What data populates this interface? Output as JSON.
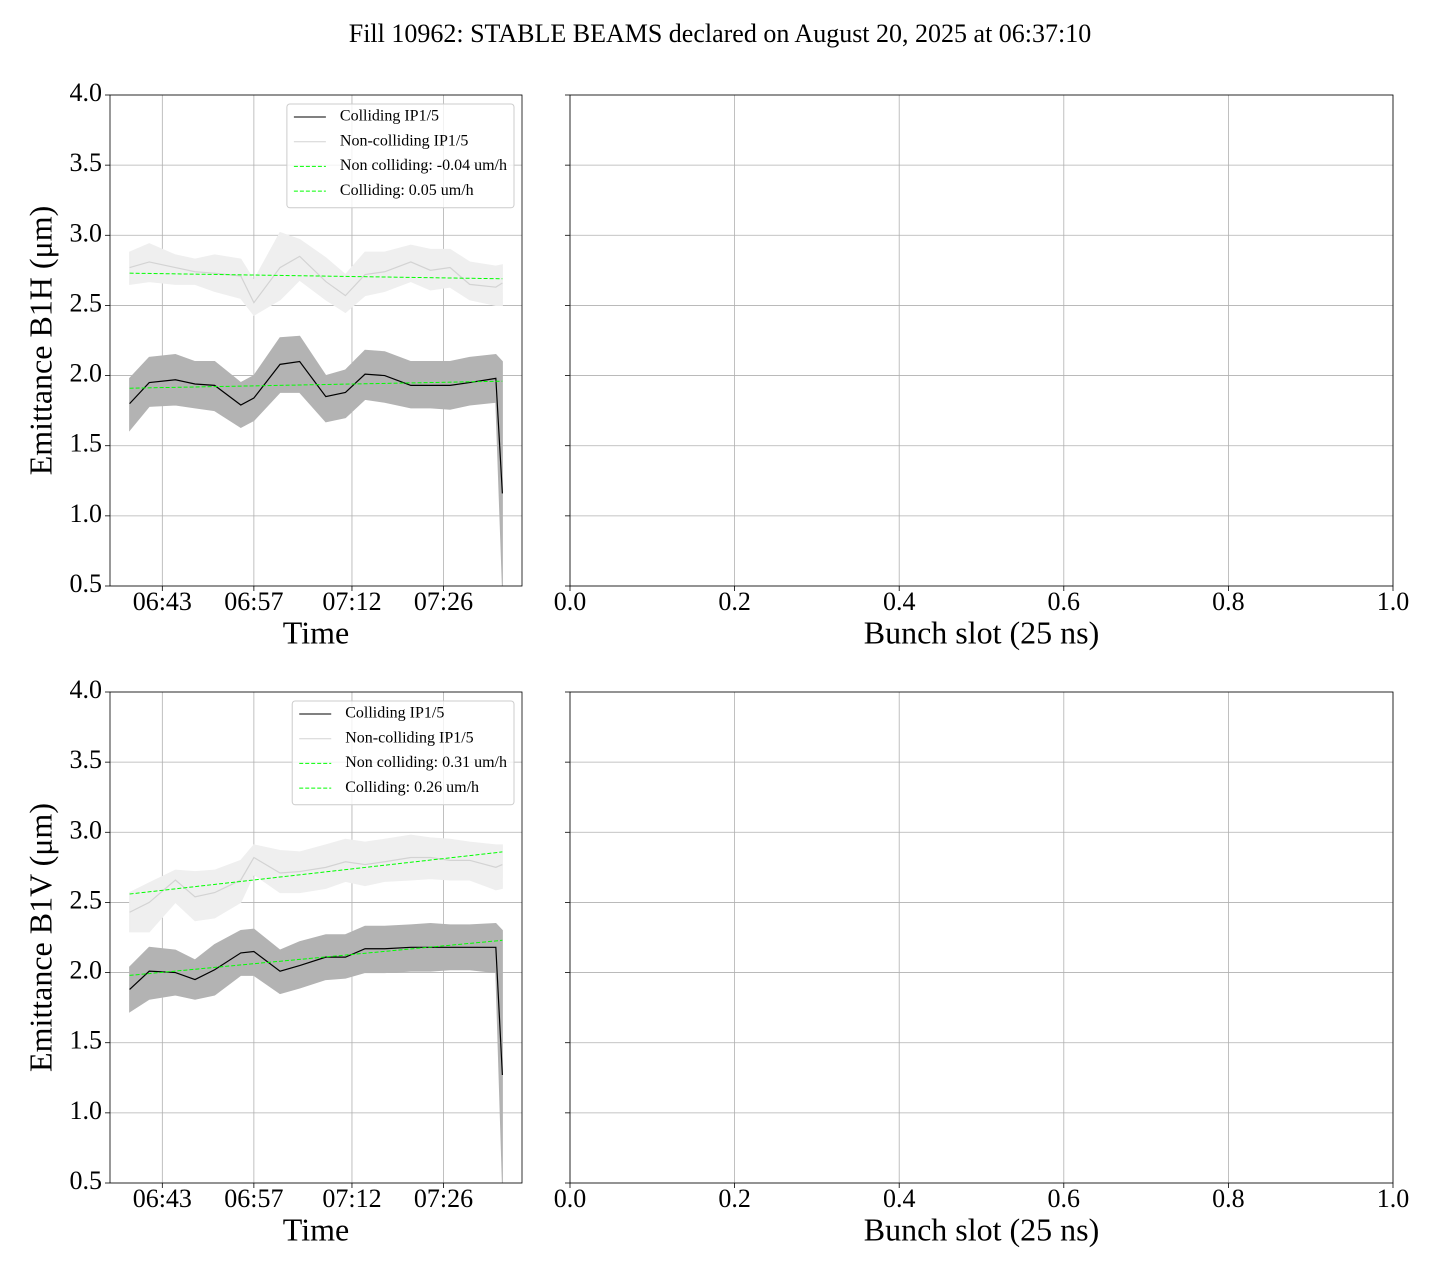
{
  "title": "Fill 10962: STABLE BEAMS declared on August 20, 2025 at 06:37:10",
  "chart_data": [
    {
      "type": "line",
      "xlabel": "Time",
      "ylabel": "Emittance B1H (μm)",
      "grid": true,
      "legend": "upper right",
      "show_ytick_labels": true,
      "x": [
        "06:38",
        "06:41",
        "06:45",
        "06:48",
        "06:51",
        "06:55",
        "06:57",
        "07:01",
        "07:04",
        "07:08",
        "07:11",
        "07:14",
        "07:17",
        "07:21",
        "07:24",
        "07:27",
        "07:30",
        "07:34",
        "07:35"
      ],
      "xlim": [
        "06:35",
        "07:38"
      ],
      "xticks": [
        "06:43",
        "06:57",
        "07:12",
        "07:26"
      ],
      "ylim": [
        0.5,
        4
      ],
      "yticks": [
        0.5,
        {
          "value": 1,
          "label": "1.0"
        },
        1.5,
        {
          "value": 2,
          "label": "2.0"
        },
        2.5,
        {
          "value": 3,
          "label": "3.0"
        },
        3.5,
        {
          "value": 4,
          "label": "4.0"
        }
      ],
      "series": [
        {
          "name": "Colliding IP1/5",
          "color": "#000000",
          "band_color": "#b3b3b3",
          "values": [
            1.8,
            1.95,
            1.97,
            1.94,
            1.93,
            1.79,
            1.84,
            2.08,
            2.1,
            1.85,
            1.88,
            2.01,
            2.0,
            1.93,
            1.93,
            1.93,
            1.95,
            1.98,
            1.16
          ],
          "band_low": [
            1.61,
            1.78,
            1.79,
            1.77,
            1.75,
            1.63,
            1.68,
            1.88,
            1.88,
            1.67,
            1.7,
            1.83,
            1.81,
            1.77,
            1.77,
            1.76,
            1.79,
            1.81,
            0.5
          ],
          "band_high": [
            1.98,
            2.13,
            2.15,
            2.1,
            2.1,
            1.95,
            2.0,
            2.27,
            2.28,
            2.0,
            2.04,
            2.18,
            2.17,
            2.1,
            2.1,
            2.1,
            2.13,
            2.15,
            2.1
          ]
        },
        {
          "name": "Non-colliding IP1/5",
          "color": "#d3d3d3",
          "band_color": "#efefef",
          "values": [
            2.77,
            2.81,
            2.77,
            2.74,
            2.73,
            2.71,
            2.52,
            2.77,
            2.85,
            2.67,
            2.57,
            2.72,
            2.74,
            2.81,
            2.75,
            2.77,
            2.65,
            2.63,
            2.66
          ],
          "band_low": [
            2.65,
            2.67,
            2.65,
            2.65,
            2.6,
            2.55,
            2.43,
            2.54,
            2.68,
            2.54,
            2.45,
            2.57,
            2.6,
            2.67,
            2.61,
            2.63,
            2.54,
            2.5,
            2.5
          ],
          "band_high": [
            2.88,
            2.94,
            2.86,
            2.83,
            2.86,
            2.83,
            2.68,
            3.02,
            2.97,
            2.84,
            2.72,
            2.88,
            2.88,
            2.93,
            2.9,
            2.9,
            2.81,
            2.78,
            2.79
          ]
        },
        {
          "name": "Non colliding: -0.04 um/h",
          "color": "#00ff00",
          "linestyle": "dashed",
          "x": [
            "06:38",
            "07:35"
          ],
          "values": [
            2.73,
            2.69
          ]
        },
        {
          "name": "Colliding: 0.05 um/h",
          "color": "#00ff00",
          "linestyle": "dashed",
          "x": [
            "06:38",
            "07:35"
          ],
          "values": [
            1.91,
            1.96
          ]
        }
      ]
    },
    {
      "type": "line",
      "xlabel": "Bunch slot (25 ns)",
      "grid": true,
      "show_ytick_labels": false,
      "xlim": [
        0,
        1
      ],
      "xticks": [
        {
          "value": 0,
          "label": "0.0"
        },
        0.2,
        0.4,
        0.6,
        0.8,
        {
          "value": 1,
          "label": "1.0"
        }
      ],
      "ylim": [
        0.5,
        4
      ],
      "yticks": [
        0.5,
        1,
        1.5,
        2,
        2.5,
        3,
        3.5,
        4
      ],
      "series": []
    },
    {
      "type": "line",
      "xlabel": "Time",
      "ylabel": "Emittance B1V (μm)",
      "grid": true,
      "legend": "upper right",
      "show_ytick_labels": true,
      "x": [
        "06:38",
        "06:41",
        "06:45",
        "06:48",
        "06:51",
        "06:55",
        "06:57",
        "07:01",
        "07:04",
        "07:08",
        "07:11",
        "07:14",
        "07:17",
        "07:21",
        "07:24",
        "07:27",
        "07:30",
        "07:34",
        "07:35"
      ],
      "xlim": [
        "06:35",
        "07:38"
      ],
      "xticks": [
        "06:43",
        "06:57",
        "07:12",
        "07:26"
      ],
      "ylim": [
        0.5,
        4
      ],
      "yticks": [
        0.5,
        {
          "value": 1,
          "label": "1.0"
        },
        1.5,
        {
          "value": 2,
          "label": "2.0"
        },
        2.5,
        {
          "value": 3,
          "label": "3.0"
        },
        3.5,
        {
          "value": 4,
          "label": "4.0"
        }
      ],
      "series": [
        {
          "name": "Colliding IP1/5",
          "color": "#000000",
          "band_color": "#b3b3b3",
          "values": [
            1.88,
            2.01,
            2.0,
            1.95,
            2.02,
            2.14,
            2.15,
            2.01,
            2.05,
            2.11,
            2.11,
            2.17,
            2.17,
            2.18,
            2.18,
            2.18,
            2.18,
            2.18,
            1.27
          ],
          "band_low": [
            1.72,
            1.81,
            1.84,
            1.81,
            1.84,
            1.98,
            1.98,
            1.85,
            1.89,
            1.95,
            1.96,
            2.0,
            2.0,
            2.01,
            2.01,
            2.02,
            2.02,
            2.0,
            0.5
          ],
          "band_high": [
            2.04,
            2.18,
            2.16,
            2.09,
            2.2,
            2.3,
            2.31,
            2.16,
            2.22,
            2.27,
            2.27,
            2.33,
            2.33,
            2.34,
            2.35,
            2.34,
            2.34,
            2.35,
            2.3
          ]
        },
        {
          "name": "Non-colliding IP1/5",
          "color": "#d3d3d3",
          "band_color": "#efefef",
          "values": [
            2.43,
            2.5,
            2.66,
            2.54,
            2.57,
            2.66,
            2.82,
            2.71,
            2.72,
            2.75,
            2.79,
            2.77,
            2.79,
            2.82,
            2.82,
            2.8,
            2.8,
            2.75,
            2.77
          ],
          "band_low": [
            2.29,
            2.29,
            2.5,
            2.37,
            2.39,
            2.5,
            2.7,
            2.57,
            2.57,
            2.6,
            2.65,
            2.62,
            2.65,
            2.66,
            2.67,
            2.66,
            2.66,
            2.59,
            2.6
          ],
          "band_high": [
            2.57,
            2.64,
            2.73,
            2.72,
            2.73,
            2.8,
            2.91,
            2.87,
            2.86,
            2.91,
            2.95,
            2.93,
            2.95,
            2.98,
            2.96,
            2.95,
            2.93,
            2.91,
            2.91
          ]
        },
        {
          "name": "Non colliding: 0.31 um/h",
          "color": "#00ff00",
          "linestyle": "dashed",
          "x": [
            "06:38",
            "07:35"
          ],
          "values": [
            2.56,
            2.86
          ]
        },
        {
          "name": "Colliding: 0.26 um/h",
          "color": "#00ff00",
          "linestyle": "dashed",
          "x": [
            "06:38",
            "07:35"
          ],
          "values": [
            1.98,
            2.23
          ]
        }
      ]
    },
    {
      "type": "line",
      "xlabel": "Bunch slot (25 ns)",
      "grid": true,
      "show_ytick_labels": false,
      "xlim": [
        0,
        1
      ],
      "xticks": [
        {
          "value": 0,
          "label": "0.0"
        },
        0.2,
        0.4,
        0.6,
        0.8,
        {
          "value": 1,
          "label": "1.0"
        }
      ],
      "ylim": [
        0.5,
        4
      ],
      "yticks": [
        0.5,
        1,
        1.5,
        2,
        2.5,
        3,
        3.5,
        4
      ],
      "series": []
    }
  ]
}
